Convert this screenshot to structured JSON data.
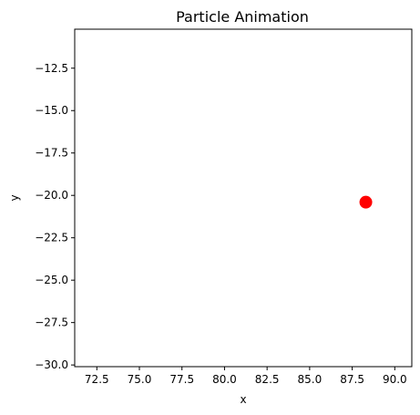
{
  "chart_data": {
    "type": "scatter",
    "title": "Particle Animation",
    "xlabel": "x",
    "ylabel": "y",
    "xlim": [
      71.2,
      91.0
    ],
    "ylim": [
      -30.1,
      -10.2
    ],
    "xticks": [
      72.5,
      75.0,
      77.5,
      80.0,
      82.5,
      85.0,
      87.5,
      90.0
    ],
    "yticks": [
      -12.5,
      -15.0,
      -17.5,
      -20.0,
      -22.5,
      -25.0,
      -27.5,
      -30.0
    ],
    "xtick_labels": [
      "72.5",
      "75.0",
      "77.5",
      "80.0",
      "82.5",
      "85.0",
      "87.5",
      "90.0"
    ],
    "ytick_labels": [
      "−12.5",
      "−15.0",
      "−17.5",
      "−20.0",
      "−22.5",
      "−25.0",
      "−27.5",
      "−30.0"
    ],
    "points": [
      {
        "x": 88.3,
        "y": -20.4
      }
    ],
    "marker_color": "#ff0000",
    "grid": false
  }
}
